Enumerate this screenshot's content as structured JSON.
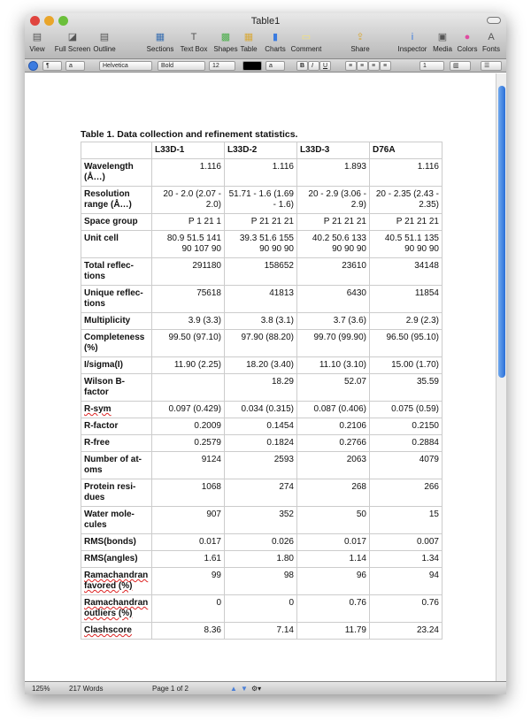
{
  "window": {
    "title": "Table1"
  },
  "toolbar": [
    {
      "label": "View",
      "icon": "view-icon"
    },
    {
      "label": "Full Screen",
      "icon": "fullscreen-icon"
    },
    {
      "label": "Outline",
      "icon": "outline-icon"
    },
    {
      "label": "Sections",
      "icon": "sections-icon"
    },
    {
      "label": "Text Box",
      "icon": "textbox-icon"
    },
    {
      "label": "Shapes",
      "icon": "shapes-icon"
    },
    {
      "label": "Table",
      "icon": "table-icon"
    },
    {
      "label": "Charts",
      "icon": "charts-icon"
    },
    {
      "label": "Comment",
      "icon": "comment-icon"
    },
    {
      "label": "Share",
      "icon": "share-icon"
    },
    {
      "label": "Inspector",
      "icon": "inspector-icon"
    },
    {
      "label": "Media",
      "icon": "media-icon"
    },
    {
      "label": "Colors",
      "icon": "colors-icon"
    },
    {
      "label": "Fonts",
      "icon": "fonts-icon"
    }
  ],
  "format_bar": {
    "para": "¶",
    "char": "a",
    "font": "Helvetica",
    "style": "Bold",
    "size": "12",
    "text_color": "#000000",
    "bold": "B",
    "italic": "I",
    "underline": "U",
    "line_spacing": "1"
  },
  "document": {
    "caption": "Table 1.  Data collection and refinement statistics.",
    "headers": [
      "",
      "L33D-1",
      "L33D-2",
      "L33D-3",
      "D76A"
    ],
    "rows": [
      [
        "Wavelength (Å…)",
        "1.116",
        "1.116",
        "1.893",
        "1.116"
      ],
      [
        "Resolution range (Å…)",
        "20  - 2.0 (2.07 - 2.0)",
        "51.71  - 1.6 (1.69 - 1.6)",
        "20  - 2.9 (3.06 - 2.9)",
        "20  - 2.35 (2.43 - 2.35)"
      ],
      [
        "Space group",
        "P 1 21 1",
        "P 21 21 21",
        "P 21 21 21",
        "P 21 21 21"
      ],
      [
        "Unit cell",
        "80.9 51.5 141 90 107 90",
        "39.3 51.6 155 90 90 90",
        "40.2 50.6 133 90 90 90",
        "40.5 51.1 135 90 90 90"
      ],
      [
        "Total reflec-tions",
        "291180",
        "158652",
        "23610",
        "34148"
      ],
      [
        "Unique reflec-tions",
        "75618",
        "41813",
        "6430",
        "11854"
      ],
      [
        "Multiplicity",
        "3.9 (3.3)",
        "3.8 (3.1)",
        "3.7 (3.6)",
        "2.9 (2.3)"
      ],
      [
        "Completeness (%)",
        "99.50 (97.10)",
        "97.90 (88.20)",
        "99.70 (99.90)",
        "96.50 (95.10)"
      ],
      [
        "I/sigma(I)",
        "11.90 (2.25)",
        "18.20 (3.40)",
        "11.10 (3.10)",
        "15.00 (1.70)"
      ],
      [
        "Wilson B-factor",
        "",
        "18.29",
        "52.07",
        "35.59"
      ],
      [
        "R-sym",
        "0.097 (0.429)",
        "0.034 (0.315)",
        "0.087 (0.406)",
        "0.075 (0.59)"
      ],
      [
        "R-factor",
        "0.2009",
        "0.1454",
        "0.2106",
        "0.2150"
      ],
      [
        "R-free",
        "0.2579",
        "0.1824",
        "0.2766",
        "0.2884"
      ],
      [
        "Number of at-oms",
        "9124",
        "2593",
        "2063",
        "4079"
      ],
      [
        "Protein resi-dues",
        "1068",
        "274",
        "268",
        "266"
      ],
      [
        "Water mole-cules",
        "907",
        "352",
        "50",
        "15"
      ],
      [
        "RMS(bonds)",
        "0.017",
        "0.026",
        "0.017",
        "0.007"
      ],
      [
        "RMS(angles)",
        "1.61",
        "1.80",
        "1.14",
        "1.34"
      ],
      [
        "Ramachandran favored (%)",
        "99",
        "98",
        "96",
        "94"
      ],
      [
        "Ramachandran outliers (%)",
        "0",
        "0",
        "0.76",
        "0.76"
      ],
      [
        "Clashscore",
        "8.36",
        "7.14",
        "11.79",
        "23.24"
      ]
    ]
  },
  "status": {
    "zoom": "125%",
    "words": "217 Words",
    "page": "Page 1 of 2"
  }
}
